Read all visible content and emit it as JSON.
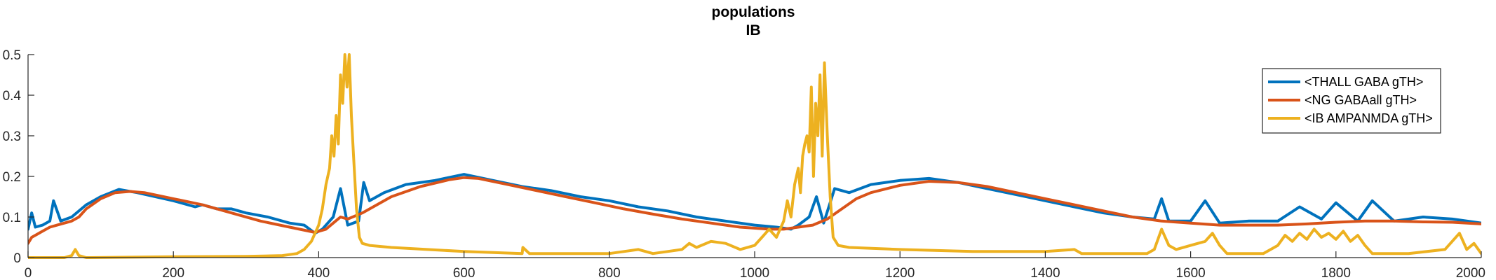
{
  "chart_data": {
    "type": "line",
    "title": "populations",
    "subtitle": "IB",
    "xlabel": "",
    "ylabel": "",
    "xlim": [
      0,
      2000
    ],
    "ylim": [
      0,
      0.5
    ],
    "x_ticks": [
      0,
      200,
      400,
      600,
      800,
      1000,
      1200,
      1400,
      1600,
      1800,
      2000
    ],
    "y_ticks": [
      0,
      0.1,
      0.2,
      0.3,
      0.4,
      0.5
    ],
    "x_tick_labels": [
      "0",
      "200",
      "400",
      "600",
      "800",
      "1000",
      "1200",
      "1400",
      "1600",
      "1800",
      "2000"
    ],
    "y_tick_labels": [
      "0",
      "0.1",
      "0.2",
      "0.3",
      "0.4",
      "0.5"
    ],
    "grid": false,
    "legend_position": "top-right",
    "series": [
      {
        "name": "<THALL GABA gTH>",
        "color": "#0072BD",
        "x": [
          0,
          5,
          10,
          20,
          30,
          35,
          45,
          60,
          80,
          100,
          125,
          150,
          200,
          230,
          240,
          260,
          280,
          300,
          330,
          360,
          380,
          395,
          405,
          420,
          430,
          440,
          455,
          462,
          470,
          490,
          520,
          560,
          600,
          640,
          680,
          720,
          760,
          800,
          840,
          880,
          920,
          960,
          1000,
          1030,
          1050,
          1060,
          1075,
          1085,
          1095,
          1110,
          1130,
          1160,
          1200,
          1240,
          1280,
          1320,
          1360,
          1400,
          1440,
          1480,
          1520,
          1550,
          1560,
          1570,
          1600,
          1620,
          1640,
          1680,
          1720,
          1750,
          1780,
          1800,
          1830,
          1850,
          1880,
          1920,
          1960,
          2000
        ],
        "values": [
          0.07,
          0.11,
          0.075,
          0.08,
          0.09,
          0.14,
          0.09,
          0.1,
          0.13,
          0.15,
          0.168,
          0.16,
          0.14,
          0.125,
          0.13,
          0.12,
          0.12,
          0.11,
          0.1,
          0.085,
          0.08,
          0.06,
          0.07,
          0.1,
          0.17,
          0.08,
          0.09,
          0.185,
          0.14,
          0.16,
          0.18,
          0.19,
          0.205,
          0.19,
          0.175,
          0.165,
          0.15,
          0.14,
          0.125,
          0.115,
          0.1,
          0.09,
          0.08,
          0.075,
          0.07,
          0.08,
          0.1,
          0.15,
          0.085,
          0.17,
          0.16,
          0.18,
          0.19,
          0.195,
          0.185,
          0.17,
          0.155,
          0.14,
          0.125,
          0.11,
          0.1,
          0.095,
          0.145,
          0.09,
          0.09,
          0.14,
          0.085,
          0.09,
          0.09,
          0.125,
          0.095,
          0.135,
          0.09,
          0.14,
          0.09,
          0.1,
          0.095,
          0.085
        ]
      },
      {
        "name": "<NG GABAall gTH>",
        "color": "#D95319",
        "x": [
          0,
          5,
          10,
          20,
          30,
          40,
          50,
          60,
          70,
          80,
          100,
          120,
          140,
          160,
          200,
          240,
          280,
          320,
          360,
          395,
          410,
          420,
          430,
          440,
          460,
          480,
          500,
          540,
          580,
          600,
          620,
          660,
          700,
          740,
          780,
          820,
          860,
          900,
          940,
          980,
          1020,
          1040,
          1060,
          1080,
          1100,
          1120,
          1140,
          1160,
          1200,
          1240,
          1280,
          1320,
          1360,
          1400,
          1440,
          1480,
          1520,
          1560,
          1600,
          1640,
          1680,
          1720,
          1760,
          1800,
          1840,
          1880,
          1920,
          1960,
          2000
        ],
        "values": [
          0.035,
          0.05,
          0.055,
          0.065,
          0.075,
          0.08,
          0.085,
          0.09,
          0.1,
          0.12,
          0.145,
          0.16,
          0.163,
          0.16,
          0.145,
          0.13,
          0.11,
          0.09,
          0.075,
          0.062,
          0.07,
          0.085,
          0.1,
          0.095,
          0.11,
          0.13,
          0.15,
          0.175,
          0.192,
          0.197,
          0.195,
          0.18,
          0.165,
          0.15,
          0.135,
          0.12,
          0.107,
          0.095,
          0.085,
          0.075,
          0.07,
          0.07,
          0.075,
          0.08,
          0.095,
          0.12,
          0.145,
          0.16,
          0.178,
          0.188,
          0.185,
          0.175,
          0.16,
          0.145,
          0.13,
          0.115,
          0.1,
          0.09,
          0.085,
          0.08,
          0.08,
          0.08,
          0.083,
          0.087,
          0.09,
          0.09,
          0.088,
          0.087,
          0.083
        ]
      },
      {
        "name": "<IB AMPANMDA gTH>",
        "color": "#EDB120",
        "x": [
          0,
          50,
          60,
          65,
          70,
          80,
          200,
          300,
          350,
          370,
          380,
          390,
          395,
          400,
          405,
          410,
          415,
          418,
          421,
          424,
          427,
          430,
          433,
          436,
          439,
          442,
          445,
          448,
          452,
          456,
          460,
          470,
          500,
          600,
          680,
          681,
          690,
          800,
          820,
          840,
          860,
          880,
          900,
          910,
          920,
          940,
          960,
          980,
          1000,
          1010,
          1020,
          1030,
          1040,
          1045,
          1050,
          1055,
          1060,
          1063,
          1066,
          1069,
          1072,
          1075,
          1078,
          1081,
          1084,
          1087,
          1090,
          1093,
          1096,
          1100,
          1104,
          1108,
          1115,
          1130,
          1200,
          1300,
          1400,
          1440,
          1450,
          1500,
          1540,
          1550,
          1555,
          1560,
          1570,
          1580,
          1600,
          1620,
          1630,
          1640,
          1650,
          1700,
          1720,
          1730,
          1740,
          1750,
          1760,
          1770,
          1780,
          1790,
          1800,
          1810,
          1820,
          1830,
          1840,
          1850,
          1900,
          1950,
          1970,
          1980,
          1990,
          2000
        ],
        "values": [
          0,
          0,
          0.005,
          0.02,
          0.005,
          0,
          0.002,
          0.003,
          0.005,
          0.01,
          0.02,
          0.04,
          0.06,
          0.08,
          0.12,
          0.18,
          0.22,
          0.3,
          0.25,
          0.35,
          0.28,
          0.45,
          0.38,
          0.5,
          0.42,
          0.5,
          0.35,
          0.25,
          0.12,
          0.05,
          0.035,
          0.03,
          0.025,
          0.015,
          0.01,
          0.025,
          0.01,
          0.01,
          0.015,
          0.02,
          0.01,
          0.015,
          0.02,
          0.035,
          0.025,
          0.04,
          0.035,
          0.02,
          0.03,
          0.05,
          0.07,
          0.05,
          0.09,
          0.14,
          0.1,
          0.18,
          0.22,
          0.16,
          0.25,
          0.28,
          0.3,
          0.26,
          0.42,
          0.2,
          0.38,
          0.3,
          0.45,
          0.25,
          0.48,
          0.3,
          0.15,
          0.05,
          0.03,
          0.025,
          0.02,
          0.015,
          0.015,
          0.02,
          0.01,
          0.01,
          0.01,
          0.02,
          0.045,
          0.07,
          0.03,
          0.02,
          0.03,
          0.04,
          0.06,
          0.03,
          0.01,
          0.01,
          0.03,
          0.055,
          0.04,
          0.06,
          0.045,
          0.07,
          0.05,
          0.06,
          0.045,
          0.065,
          0.04,
          0.055,
          0.03,
          0.01,
          0.01,
          0.02,
          0.06,
          0.02,
          0.035,
          0.01
        ]
      }
    ]
  }
}
